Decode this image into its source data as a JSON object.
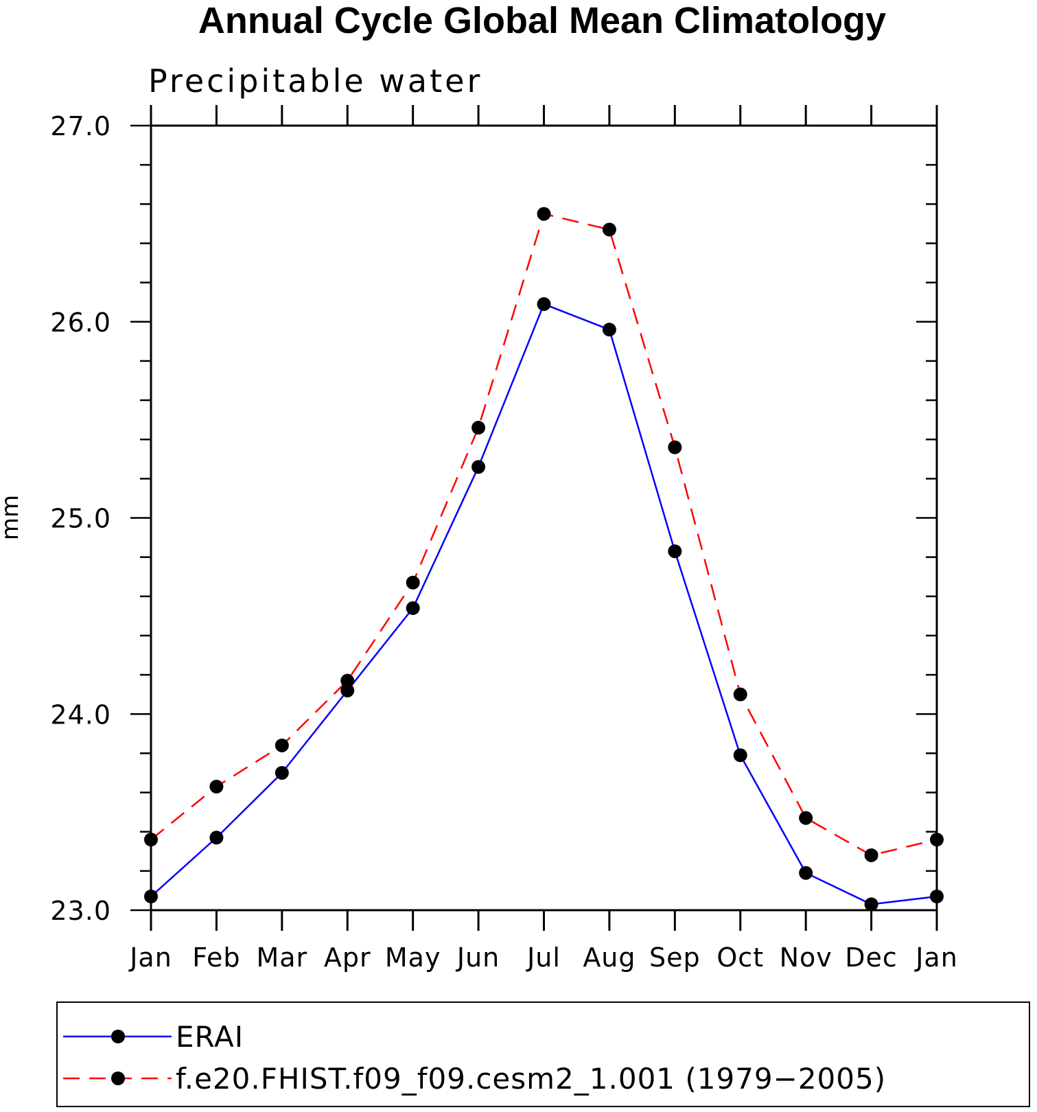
{
  "chart_data": {
    "type": "line",
    "title": "Annual Cycle Global Mean Climatology",
    "subtitle": "Precipitable water",
    "xlabel": "",
    "ylabel": "mm",
    "categories": [
      "Jan",
      "Feb",
      "Mar",
      "Apr",
      "May",
      "Jun",
      "Jul",
      "Aug",
      "Sep",
      "Oct",
      "Nov",
      "Dec",
      "Jan"
    ],
    "yticks": [
      "23.0",
      "24.0",
      "25.0",
      "26.0",
      "27.0"
    ],
    "ylim": [
      23.0,
      27.0
    ],
    "grid": false,
    "legend_position": "bottom",
    "series": [
      {
        "name": "ERAI",
        "color": "#0000ff",
        "dash": "solid",
        "marker": "circle",
        "values": [
          23.07,
          23.37,
          23.7,
          24.12,
          24.54,
          25.26,
          26.09,
          25.96,
          24.83,
          23.79,
          23.19,
          23.03,
          23.07
        ]
      },
      {
        "name": "f.e20.FHIST.f09_f09.cesm2_1.001 (1979−2005)",
        "color": "#ff0000",
        "dash": "dashed",
        "marker": "circle",
        "values": [
          23.36,
          23.63,
          23.84,
          24.17,
          24.67,
          25.46,
          26.55,
          26.47,
          25.36,
          24.1,
          23.47,
          23.28,
          23.36
        ]
      }
    ]
  }
}
